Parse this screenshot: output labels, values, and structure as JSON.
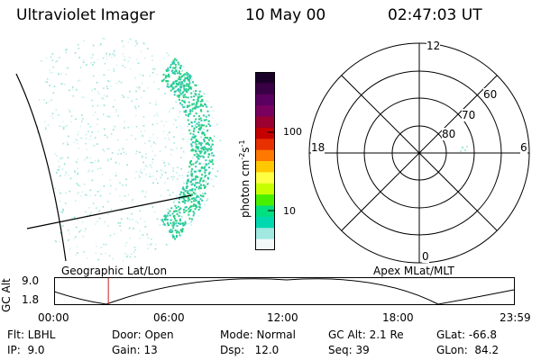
{
  "header": {
    "title": "Ultraviolet Imager",
    "date": "10 May 00",
    "time": "02:47:03 UT"
  },
  "colorbar": {
    "label": "photon cm",
    "label_sup1": "-2",
    "label_mid": "s",
    "label_sup2": "-1",
    "ticks": [
      "100",
      "10"
    ],
    "colors": [
      "#1a0029",
      "#3a0046",
      "#5a0060",
      "#7a0060",
      "#9a0030",
      "#c40000",
      "#e83000",
      "#ff7800",
      "#ffc800",
      "#ffff44",
      "#c8ff00",
      "#48f000",
      "#00e080",
      "#00d8b0",
      "#a0e8e0",
      "#f2f8f8"
    ]
  },
  "polar": {
    "mlt_labels": {
      "top": "12",
      "left": "18",
      "right": "6",
      "bottom": "0"
    },
    "lat_labels": [
      "60",
      "70",
      "80"
    ]
  },
  "altitude_panel": {
    "left_title": "Geographic Lat/Lon",
    "right_title": "Apex MLat/MLT",
    "ylabel": "GC Alt",
    "ymax": "9.0",
    "ymin": "1.8",
    "time_ticks": [
      "00:00",
      "06:00",
      "12:00",
      "18:00",
      "23:59"
    ],
    "current_time_fraction": 0.116,
    "colors": {
      "marker": "#cc2020"
    }
  },
  "status": {
    "row1": {
      "flt": "Flt: LBHL",
      "door": "Door: Open",
      "mode": "Mode: Normal",
      "gc_alt": "GC Alt: 2.1 Re",
      "glat": "GLat: -66.8"
    },
    "row2": {
      "ip": "IP:  9.0",
      "gain": "Gain: 13",
      "dsp": "Dsp:   12.0",
      "seq": "Seq: 39",
      "glon": "GLon:  84.2"
    }
  }
}
